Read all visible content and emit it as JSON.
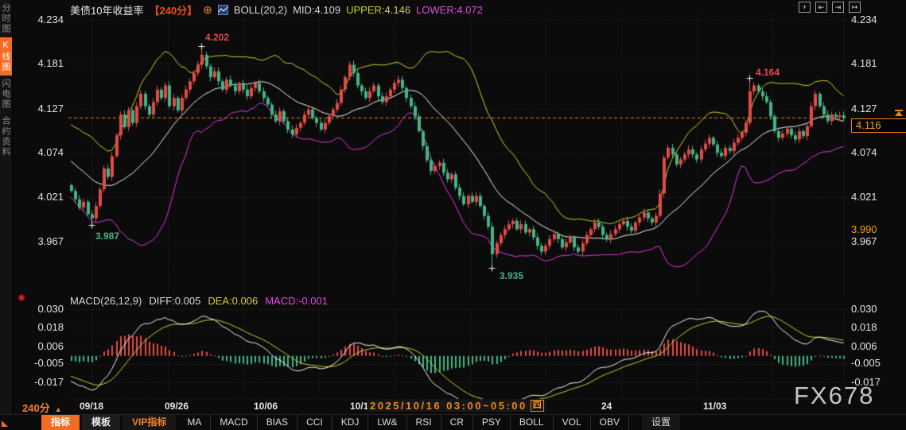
{
  "header": {
    "title": "美债10年收益率",
    "period_tag": "【240分】",
    "add_icon": "⊕",
    "boll_label": "BOLL(20,2)",
    "mid_label": "MID:4.109",
    "upper_label": "UPPER:4.146",
    "lower_label": "LOWER:4.072"
  },
  "top_controls": {
    "pan": "+",
    "align_left": "⇤",
    "align_right": "⇥",
    "shift_right": "↦"
  },
  "sidebar": {
    "items": [
      {
        "label": "分时图"
      },
      {
        "label": "K线图"
      },
      {
        "label": "闪电图"
      },
      {
        "label": "合约资料"
      }
    ]
  },
  "main_chart": {
    "y_left": [
      "4.234",
      "4.181",
      "4.127",
      "4.074",
      "4.021",
      "3.967"
    ],
    "y_right": [
      "4.234",
      "4.181",
      "4.127",
      "4.074",
      "4.021",
      "3.967"
    ],
    "prev_close": "3.990",
    "current_price": "4.116",
    "ann_high1": "4.202",
    "ann_low1": "3.987",
    "ann_high2": "4.164",
    "ann_low2": "3.935"
  },
  "macd_panel": {
    "title": "MACD(26,12,9)",
    "diff_label": "DIFF:0.005",
    "dea_label": "DEA:0.006",
    "macd_label": "MACD:-0.001",
    "alert_icon": "✺",
    "y_left": [
      "0.030",
      "0.018",
      "0.006",
      "-0.005",
      "-0.017"
    ],
    "y_right": [
      "0.030",
      "0.018",
      "0.006",
      "-0.005",
      "-0.017"
    ]
  },
  "x_axis": {
    "d1": "09/18",
    "d2": "09/26",
    "d3": "10/06",
    "d4": "10/1",
    "tooltip": "2025/10/16 03:00~05:00",
    "weekday": "四",
    "d5": "24",
    "d6": "11/03"
  },
  "footer": {
    "period": "240分",
    "period_arrow": "▲",
    "tabs": [
      "指标",
      "模板",
      "VIP指标"
    ],
    "indicators": [
      "MA",
      "MACD",
      "BIAS",
      "CCI",
      "KDJ",
      "LW&",
      "RSI",
      "CR",
      "PSY",
      "BOLL",
      "VOL",
      "OBV"
    ],
    "settings": "设置"
  },
  "watermark": "FX678",
  "colors": {
    "up": "#e24c48",
    "down": "#45b585",
    "boll_upper": "#cdd02f",
    "boll_mid": "#f2f2f2",
    "boll_lower": "#e236e2",
    "accent_orange": "#f08018",
    "active_tab": "#f36c21",
    "grid": "#2e2e2e",
    "diff_line": "#f2f2f2",
    "dea_line": "#cdd02f"
  },
  "chart_data": {
    "type": "candlestick",
    "title": "美债10年收益率 240分 K线 + BOLL(20,2) + MACD(26,12,9)",
    "y_axis": [
      4.234,
      4.181,
      4.127,
      4.074,
      4.021,
      3.967
    ],
    "macd_axis": [
      0.03,
      0.018,
      0.006,
      -0.005,
      -0.017
    ],
    "x_ticks": [
      "09/18",
      "09/26",
      "10/06",
      "10/16",
      "10/24",
      "11/03"
    ],
    "current": 4.116,
    "prev_close": 3.99,
    "boll": {
      "period": 20,
      "mult": 2,
      "mid": 4.109,
      "upper": 4.146,
      "lower": 4.072
    },
    "macd_readout": {
      "fast": 26,
      "slow": 12,
      "signal": 9,
      "diff": 0.005,
      "dea": 0.006,
      "hist": -0.001
    },
    "extremes": [
      {
        "index": 5,
        "price": 3.987,
        "side": "low"
      },
      {
        "index": 32,
        "price": 4.202,
        "side": "high"
      },
      {
        "index": 103,
        "price": 3.935,
        "side": "low"
      },
      {
        "index": 166,
        "price": 4.164,
        "side": "high"
      }
    ],
    "closes": [
      4.028,
      4.018,
      4.008,
      4.015,
      4.0,
      3.995,
      4.01,
      4.03,
      4.055,
      4.045,
      4.07,
      4.095,
      4.12,
      4.105,
      4.125,
      4.11,
      4.13,
      4.145,
      4.13,
      4.12,
      4.135,
      4.15,
      4.14,
      4.155,
      4.13,
      4.14,
      4.125,
      4.14,
      4.15,
      4.16,
      4.17,
      4.18,
      4.192,
      4.178,
      4.165,
      4.172,
      4.16,
      4.15,
      4.162,
      4.155,
      4.148,
      4.158,
      4.15,
      4.142,
      4.152,
      4.158,
      4.148,
      4.14,
      4.132,
      4.12,
      4.112,
      4.124,
      4.112,
      4.102,
      4.096,
      4.104,
      4.11,
      4.12,
      4.126,
      4.116,
      4.11,
      4.102,
      4.11,
      4.118,
      4.126,
      4.134,
      4.15,
      4.165,
      4.18,
      4.17,
      4.155,
      4.148,
      4.14,
      4.148,
      4.155,
      4.142,
      4.135,
      4.142,
      4.15,
      4.158,
      4.162,
      4.152,
      4.14,
      4.13,
      4.118,
      4.1,
      4.082,
      4.065,
      4.052,
      4.058,
      4.062,
      4.05,
      4.042,
      4.048,
      4.032,
      4.022,
      4.012,
      4.022,
      4.015,
      4.022,
      4.01,
      3.998,
      3.985,
      3.952,
      3.965,
      3.975,
      3.982,
      3.988,
      3.992,
      3.982,
      3.988,
      3.978,
      3.982,
      3.972,
      3.962,
      3.955,
      3.962,
      3.97,
      3.976,
      3.97,
      3.96,
      3.966,
      3.972,
      3.96,
      3.955,
      3.965,
      3.975,
      3.982,
      3.99,
      3.985,
      3.975,
      3.97,
      3.976,
      3.982,
      3.988,
      3.992,
      3.985,
      3.98,
      3.99,
      3.996,
      4.002,
      3.995,
      3.99,
      3.998,
      4.025,
      4.068,
      4.08,
      4.072,
      4.06,
      4.066,
      4.072,
      4.078,
      4.072,
      4.066,
      4.078,
      4.085,
      4.092,
      4.084,
      4.074,
      4.07,
      4.08,
      4.076,
      4.086,
      4.092,
      4.098,
      4.11,
      4.148,
      4.155,
      4.148,
      4.142,
      4.135,
      4.118,
      4.1,
      4.092,
      4.097,
      4.103,
      4.095,
      4.09,
      4.1,
      4.094,
      4.106,
      4.13,
      4.145,
      4.13,
      4.12,
      4.112,
      4.12,
      4.117,
      4.119,
      4.116
    ]
  }
}
